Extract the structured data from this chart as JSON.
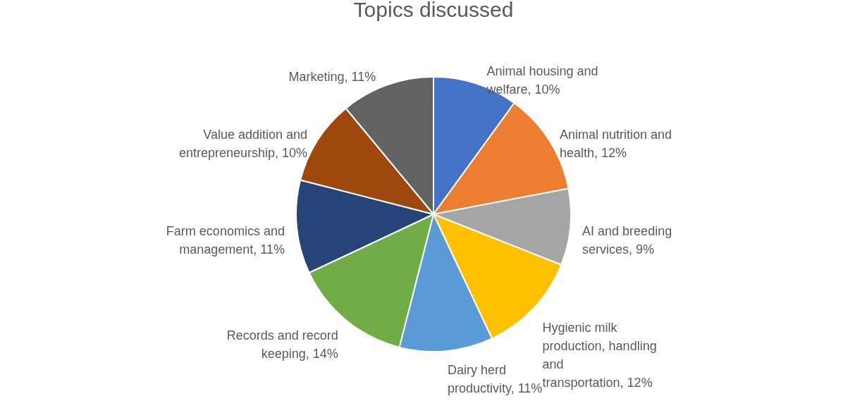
{
  "chart_data": {
    "type": "pie",
    "title": "Topics discussed",
    "categories": [
      "Animal housing and welfare",
      "Animal nutrition and health",
      "AI and breeding services",
      "Hygienic milk production, handling and transportation",
      "Dairy herd productivity",
      "Records and record keeping",
      "Farm economics and management",
      "Value addition and entrepreneurship",
      "Marketing"
    ],
    "values": [
      10,
      12,
      9,
      12,
      11,
      14,
      11,
      10,
      11
    ],
    "value_labels": [
      "10%",
      "12%",
      "9%",
      "12%",
      "11%",
      "14%",
      "11%",
      "10%",
      "11%"
    ],
    "colors": [
      "#4472c4",
      "#ed7d31",
      "#a5a5a5",
      "#ffc000",
      "#5b9bd5",
      "#70ad47",
      "#264478",
      "#9e480e",
      "#636363"
    ],
    "legend": false
  }
}
